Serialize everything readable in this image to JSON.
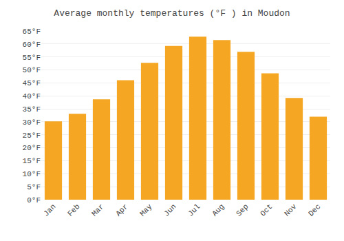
{
  "chart_data": {
    "type": "bar",
    "title": "Average monthly temperatures (°F ) in Moudon",
    "categories": [
      "Jan",
      "Feb",
      "Mar",
      "Apr",
      "May",
      "Jun",
      "Jul",
      "Aug",
      "Sep",
      "Oct",
      "Nov",
      "Dec"
    ],
    "values": [
      30.2,
      33.1,
      38.7,
      46.0,
      52.7,
      59.2,
      62.8,
      61.5,
      57.0,
      48.7,
      39.2,
      32.0
    ],
    "color": "#F5A623",
    "ylim": [
      0,
      65
    ],
    "yticks": [
      {
        "value": 0,
        "label": "0°F"
      },
      {
        "value": 5,
        "label": "5°F"
      },
      {
        "value": 10,
        "label": "10°F"
      },
      {
        "value": 15,
        "label": "15°F"
      },
      {
        "value": 20,
        "label": "20°F"
      },
      {
        "value": 25,
        "label": "25°F"
      },
      {
        "value": 30,
        "label": "30°F"
      },
      {
        "value": 35,
        "label": "35°F"
      },
      {
        "value": 40,
        "label": "40°F"
      },
      {
        "value": 45,
        "label": "45°F"
      },
      {
        "value": 50,
        "label": "50°F"
      },
      {
        "value": 55,
        "label": "55°F"
      },
      {
        "value": 60,
        "label": "60°F"
      },
      {
        "value": 65,
        "label": "65°F"
      }
    ],
    "grid": true
  }
}
